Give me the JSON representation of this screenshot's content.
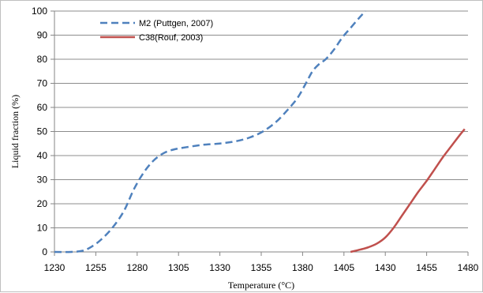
{
  "chart_data": {
    "type": "line",
    "xlabel": "Temperature (°C)",
    "ylabel": "Liquid fraction (%)",
    "xlim": [
      1230,
      1480
    ],
    "ylim": [
      0,
      100
    ],
    "xticks": [
      1230,
      1255,
      1280,
      1305,
      1330,
      1355,
      1380,
      1405,
      1430,
      1455,
      1480
    ],
    "yticks": [
      0,
      10,
      20,
      30,
      40,
      50,
      60,
      70,
      80,
      90,
      100
    ],
    "grid": "horizontal",
    "legend": "top-left",
    "series": [
      {
        "name": "M2 (Puttgen, 2007)",
        "color": "#4f81bd",
        "dash": "dashed",
        "x": [
          1230,
          1240,
          1247,
          1252,
          1258,
          1265,
          1272,
          1278,
          1284,
          1290,
          1296,
          1302,
          1310,
          1320,
          1330,
          1340,
          1348,
          1356,
          1364,
          1371,
          1377,
          1382,
          1386,
          1390,
          1394,
          1399,
          1404,
          1409,
          1414,
          1418
        ],
        "y": [
          0,
          0,
          0.5,
          2,
          5,
          10,
          17,
          26,
          33,
          38,
          41,
          42.5,
          43.5,
          44.5,
          45,
          46,
          47.5,
          50,
          54,
          59,
          64,
          70,
          75,
          78,
          80,
          84,
          89,
          93,
          97,
          100
        ]
      },
      {
        "name": "C38(Rouf, 2003)",
        "color": "#c0504d",
        "dash": "solid",
        "x": [
          1409,
          1415,
          1420,
          1425,
          1430,
          1435,
          1440,
          1445,
          1450,
          1455,
          1460,
          1465,
          1470,
          1475,
          1478
        ],
        "y": [
          0,
          1,
          2,
          3.5,
          6,
          10,
          15,
          20,
          25,
          29.5,
          34.5,
          39.5,
          44,
          48.5,
          51
        ]
      }
    ]
  }
}
